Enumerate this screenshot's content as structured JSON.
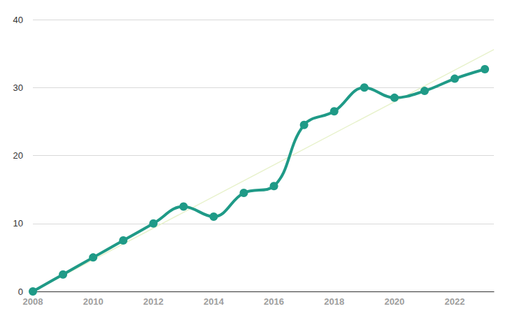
{
  "chart_data": {
    "type": "line",
    "x": [
      2008,
      2009,
      2010,
      2011,
      2012,
      2013,
      2014,
      2015,
      2016,
      2017,
      2018,
      2019,
      2020,
      2021,
      2022,
      2023
    ],
    "values": [
      0,
      2.5,
      5,
      7.5,
      10,
      12.5,
      11,
      14.5,
      15.5,
      24.5,
      26.5,
      30,
      28.5,
      29.5,
      31.3,
      32.7
    ],
    "color": "#1f9a87",
    "marker": "circle",
    "line_style": "solid",
    "trend": {
      "x": [
        2008,
        2023.3
      ],
      "values": [
        0,
        35.6
      ],
      "color": "#e8f2cc"
    },
    "xlim": [
      2008,
      2023.3
    ],
    "xticks": [
      2008,
      2010,
      2012,
      2014,
      2016,
      2018,
      2020,
      2022
    ],
    "ylim": [
      0,
      40
    ],
    "yticks": [
      0,
      10,
      20,
      30,
      40
    ],
    "grid": true
  }
}
